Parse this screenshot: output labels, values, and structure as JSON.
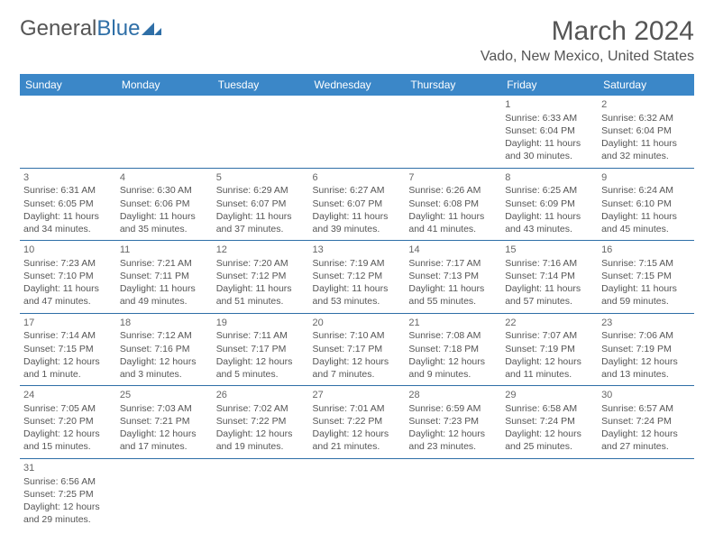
{
  "logo": {
    "general": "General",
    "blue": "Blue"
  },
  "title": "March 2024",
  "location": "Vado, New Mexico, United States",
  "colors": {
    "header_bg": "#3b87c8",
    "header_text": "#ffffff",
    "border": "#2f6fa7",
    "text": "#555555",
    "logo_blue": "#2f6fa7"
  },
  "day_headers": [
    "Sunday",
    "Monday",
    "Tuesday",
    "Wednesday",
    "Thursday",
    "Friday",
    "Saturday"
  ],
  "weeks": [
    [
      null,
      null,
      null,
      null,
      null,
      {
        "n": "1",
        "sr": "Sunrise: 6:33 AM",
        "ss": "Sunset: 6:04 PM",
        "d1": "Daylight: 11 hours",
        "d2": "and 30 minutes."
      },
      {
        "n": "2",
        "sr": "Sunrise: 6:32 AM",
        "ss": "Sunset: 6:04 PM",
        "d1": "Daylight: 11 hours",
        "d2": "and 32 minutes."
      }
    ],
    [
      {
        "n": "3",
        "sr": "Sunrise: 6:31 AM",
        "ss": "Sunset: 6:05 PM",
        "d1": "Daylight: 11 hours",
        "d2": "and 34 minutes."
      },
      {
        "n": "4",
        "sr": "Sunrise: 6:30 AM",
        "ss": "Sunset: 6:06 PM",
        "d1": "Daylight: 11 hours",
        "d2": "and 35 minutes."
      },
      {
        "n": "5",
        "sr": "Sunrise: 6:29 AM",
        "ss": "Sunset: 6:07 PM",
        "d1": "Daylight: 11 hours",
        "d2": "and 37 minutes."
      },
      {
        "n": "6",
        "sr": "Sunrise: 6:27 AM",
        "ss": "Sunset: 6:07 PM",
        "d1": "Daylight: 11 hours",
        "d2": "and 39 minutes."
      },
      {
        "n": "7",
        "sr": "Sunrise: 6:26 AM",
        "ss": "Sunset: 6:08 PM",
        "d1": "Daylight: 11 hours",
        "d2": "and 41 minutes."
      },
      {
        "n": "8",
        "sr": "Sunrise: 6:25 AM",
        "ss": "Sunset: 6:09 PM",
        "d1": "Daylight: 11 hours",
        "d2": "and 43 minutes."
      },
      {
        "n": "9",
        "sr": "Sunrise: 6:24 AM",
        "ss": "Sunset: 6:10 PM",
        "d1": "Daylight: 11 hours",
        "d2": "and 45 minutes."
      }
    ],
    [
      {
        "n": "10",
        "sr": "Sunrise: 7:23 AM",
        "ss": "Sunset: 7:10 PM",
        "d1": "Daylight: 11 hours",
        "d2": "and 47 minutes."
      },
      {
        "n": "11",
        "sr": "Sunrise: 7:21 AM",
        "ss": "Sunset: 7:11 PM",
        "d1": "Daylight: 11 hours",
        "d2": "and 49 minutes."
      },
      {
        "n": "12",
        "sr": "Sunrise: 7:20 AM",
        "ss": "Sunset: 7:12 PM",
        "d1": "Daylight: 11 hours",
        "d2": "and 51 minutes."
      },
      {
        "n": "13",
        "sr": "Sunrise: 7:19 AM",
        "ss": "Sunset: 7:12 PM",
        "d1": "Daylight: 11 hours",
        "d2": "and 53 minutes."
      },
      {
        "n": "14",
        "sr": "Sunrise: 7:17 AM",
        "ss": "Sunset: 7:13 PM",
        "d1": "Daylight: 11 hours",
        "d2": "and 55 minutes."
      },
      {
        "n": "15",
        "sr": "Sunrise: 7:16 AM",
        "ss": "Sunset: 7:14 PM",
        "d1": "Daylight: 11 hours",
        "d2": "and 57 minutes."
      },
      {
        "n": "16",
        "sr": "Sunrise: 7:15 AM",
        "ss": "Sunset: 7:15 PM",
        "d1": "Daylight: 11 hours",
        "d2": "and 59 minutes."
      }
    ],
    [
      {
        "n": "17",
        "sr": "Sunrise: 7:14 AM",
        "ss": "Sunset: 7:15 PM",
        "d1": "Daylight: 12 hours",
        "d2": "and 1 minute."
      },
      {
        "n": "18",
        "sr": "Sunrise: 7:12 AM",
        "ss": "Sunset: 7:16 PM",
        "d1": "Daylight: 12 hours",
        "d2": "and 3 minutes."
      },
      {
        "n": "19",
        "sr": "Sunrise: 7:11 AM",
        "ss": "Sunset: 7:17 PM",
        "d1": "Daylight: 12 hours",
        "d2": "and 5 minutes."
      },
      {
        "n": "20",
        "sr": "Sunrise: 7:10 AM",
        "ss": "Sunset: 7:17 PM",
        "d1": "Daylight: 12 hours",
        "d2": "and 7 minutes."
      },
      {
        "n": "21",
        "sr": "Sunrise: 7:08 AM",
        "ss": "Sunset: 7:18 PM",
        "d1": "Daylight: 12 hours",
        "d2": "and 9 minutes."
      },
      {
        "n": "22",
        "sr": "Sunrise: 7:07 AM",
        "ss": "Sunset: 7:19 PM",
        "d1": "Daylight: 12 hours",
        "d2": "and 11 minutes."
      },
      {
        "n": "23",
        "sr": "Sunrise: 7:06 AM",
        "ss": "Sunset: 7:19 PM",
        "d1": "Daylight: 12 hours",
        "d2": "and 13 minutes."
      }
    ],
    [
      {
        "n": "24",
        "sr": "Sunrise: 7:05 AM",
        "ss": "Sunset: 7:20 PM",
        "d1": "Daylight: 12 hours",
        "d2": "and 15 minutes."
      },
      {
        "n": "25",
        "sr": "Sunrise: 7:03 AM",
        "ss": "Sunset: 7:21 PM",
        "d1": "Daylight: 12 hours",
        "d2": "and 17 minutes."
      },
      {
        "n": "26",
        "sr": "Sunrise: 7:02 AM",
        "ss": "Sunset: 7:22 PM",
        "d1": "Daylight: 12 hours",
        "d2": "and 19 minutes."
      },
      {
        "n": "27",
        "sr": "Sunrise: 7:01 AM",
        "ss": "Sunset: 7:22 PM",
        "d1": "Daylight: 12 hours",
        "d2": "and 21 minutes."
      },
      {
        "n": "28",
        "sr": "Sunrise: 6:59 AM",
        "ss": "Sunset: 7:23 PM",
        "d1": "Daylight: 12 hours",
        "d2": "and 23 minutes."
      },
      {
        "n": "29",
        "sr": "Sunrise: 6:58 AM",
        "ss": "Sunset: 7:24 PM",
        "d1": "Daylight: 12 hours",
        "d2": "and 25 minutes."
      },
      {
        "n": "30",
        "sr": "Sunrise: 6:57 AM",
        "ss": "Sunset: 7:24 PM",
        "d1": "Daylight: 12 hours",
        "d2": "and 27 minutes."
      }
    ],
    [
      {
        "n": "31",
        "sr": "Sunrise: 6:56 AM",
        "ss": "Sunset: 7:25 PM",
        "d1": "Daylight: 12 hours",
        "d2": "and 29 minutes."
      },
      null,
      null,
      null,
      null,
      null,
      null
    ]
  ]
}
